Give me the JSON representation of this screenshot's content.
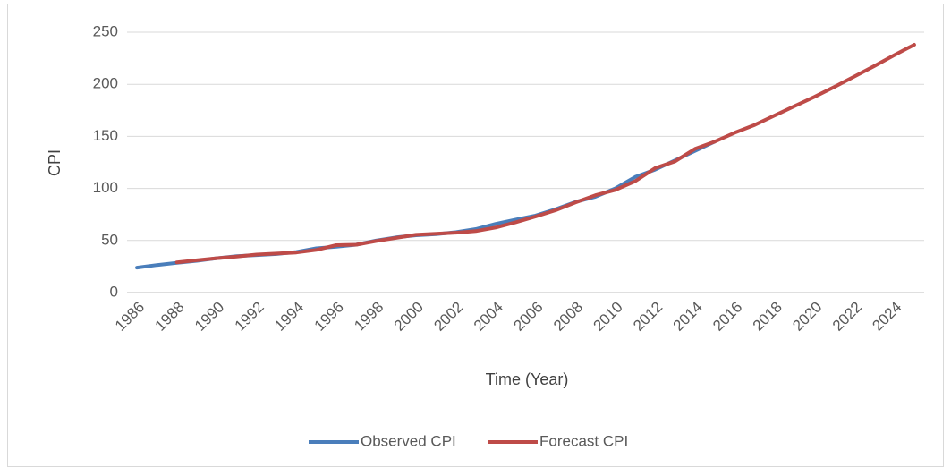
{
  "chart_data": {
    "type": "line",
    "xlabel": "Time (Year)",
    "ylabel": "CPI",
    "categories": [
      "1986",
      null,
      "1988",
      null,
      "1990",
      null,
      "1992",
      null,
      "1994",
      null,
      "1996",
      null,
      "1998",
      null,
      "2000",
      null,
      "2002",
      null,
      "2004",
      null,
      "2006",
      null,
      "2008",
      null,
      "2010",
      null,
      "2012",
      null,
      "2014",
      null,
      "2016",
      null,
      "2018",
      null,
      "2020",
      null,
      "2022",
      null,
      "2024",
      null
    ],
    "series": [
      {
        "name": "Observed CPI",
        "color": "#4a7ebb",
        "values": [
          24,
          26.5,
          28.5,
          30.5,
          33,
          35,
          36,
          37,
          39,
          42.5,
          44,
          46,
          50,
          53,
          55,
          56,
          58,
          61,
          66,
          70,
          74,
          80,
          87,
          92,
          100,
          111,
          118,
          127,
          136,
          145,
          null,
          null,
          null,
          null,
          null,
          null,
          null,
          null,
          null,
          null
        ]
      },
      {
        "name": "Forecast CPI",
        "color": "#be4b48",
        "values": [
          null,
          null,
          29,
          31,
          33,
          34.5,
          36.5,
          37.5,
          38.5,
          41,
          45.5,
          46,
          49.5,
          52.5,
          55.5,
          56.5,
          57.5,
          59,
          62.5,
          67.5,
          73,
          79,
          86.5,
          93.5,
          98.5,
          107,
          119.5,
          126,
          138,
          145,
          153.5,
          161,
          170,
          179,
          188,
          197.5,
          207.5,
          217.5,
          228,
          238
        ]
      }
    ],
    "ylim": [
      0,
      250
    ],
    "yticks": [
      0,
      50,
      100,
      150,
      200,
      250
    ],
    "grid": true,
    "legend": "bottom"
  }
}
